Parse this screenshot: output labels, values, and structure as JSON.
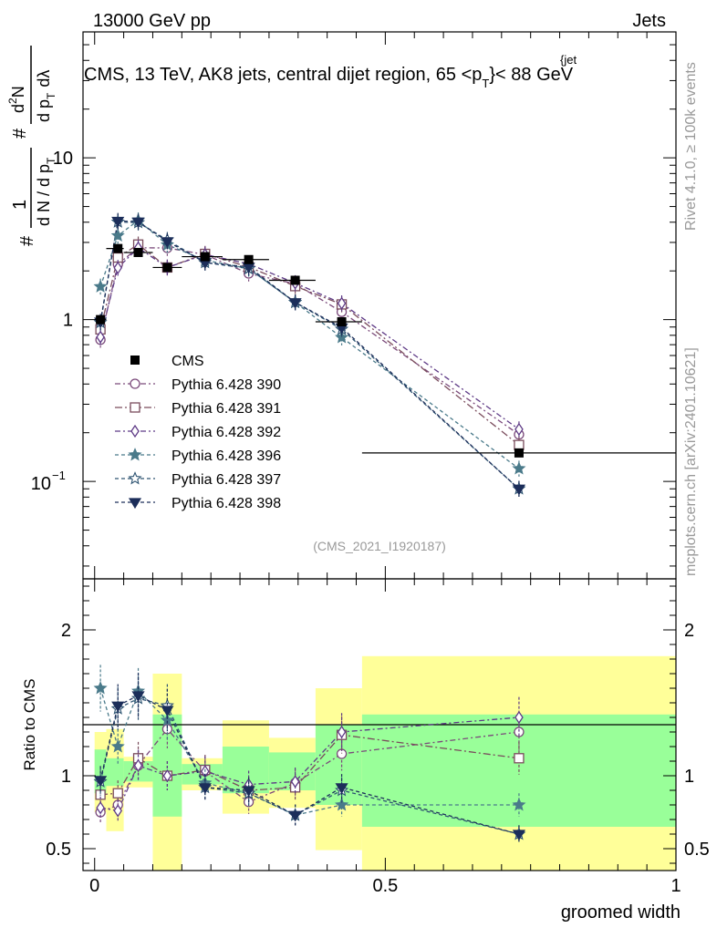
{
  "header": {
    "left": "13000 GeV pp",
    "right": "Jets",
    "plot_title": "CMS, 13 TeV, AK8 jets, central dijet region, 65 <p",
    "plot_title_sup": "{jet",
    "plot_title_sub": "T",
    "plot_title_end": "}< 88 GeV",
    "analysis_ref": "(CMS_2021_I1920187)",
    "side_rivet": "Rivet 4.1.0, ≥ 100k events",
    "side_mcplots": "mcplots.cern.ch [arXiv:2401.10621]"
  },
  "yaxis_main": {
    "num_hash": "#",
    "num_one": "1",
    "den": "d N / d p",
    "den_sub": "T",
    "num2_hash": "#",
    "num2": "d",
    "num2_sup": "2",
    "num2_N": "N",
    "den2": "d p",
    "den2_sub": "T",
    "den2_end": "d",
    "lambda": "λ"
  },
  "chart_data": {
    "type": "scatter",
    "title": "CMS, 13 TeV, AK8 jets, central dijet region, 65 < pT jet < 88 GeV",
    "xlabel": "groomed width",
    "ylabel": "1/(dN/dpT) d2N/(dpT dλ)",
    "ratio_ylabel": "Ratio to CMS",
    "xlim": [
      -0.02,
      1.0
    ],
    "ylim_main": [
      0.025,
      60
    ],
    "yscale_main": "log",
    "ylim_ratio": [
      0.35,
      2.35
    ],
    "x_ticks": [
      "0",
      "0.5",
      "1"
    ],
    "y_ticks_main": [
      "1",
      "10"
    ],
    "y_ticks_main_exp": {
      "base": "10",
      "exp": "−1"
    },
    "y_ticks_ratio": [
      "0.5",
      "1",
      "2"
    ],
    "x_centers": [
      0.01,
      0.04,
      0.075,
      0.125,
      0.19,
      0.265,
      0.345,
      0.425,
      0.73
    ],
    "x_bins": [
      [
        0.0,
        0.02
      ],
      [
        0.02,
        0.05
      ],
      [
        0.05,
        0.1
      ],
      [
        0.1,
        0.15
      ],
      [
        0.15,
        0.22
      ],
      [
        0.22,
        0.3
      ],
      [
        0.3,
        0.38
      ],
      [
        0.38,
        0.46
      ],
      [
        0.46,
        1.0
      ]
    ],
    "data": {
      "name": "CMS",
      "values": [
        1.0,
        2.75,
        2.6,
        2.1,
        2.45,
        2.35,
        1.75,
        0.97,
        0.15
      ]
    },
    "ratio_band_green": [
      [
        0.88,
        1.18
      ],
      [
        0.93,
        1.12
      ],
      [
        0.96,
        1.1
      ],
      [
        0.72,
        1.42
      ],
      [
        0.94,
        1.08
      ],
      [
        0.88,
        1.2
      ],
      [
        0.9,
        1.16
      ],
      [
        0.8,
        1.35
      ],
      [
        0.65,
        1.42
      ]
    ],
    "ratio_band_yellow": [
      [
        0.75,
        1.3
      ],
      [
        0.62,
        1.32
      ],
      [
        0.92,
        1.13
      ],
      [
        0.3,
        1.7
      ],
      [
        0.9,
        1.12
      ],
      [
        0.74,
        1.38
      ],
      [
        0.78,
        1.26
      ],
      [
        0.49,
        1.6
      ],
      [
        0.3,
        1.82
      ]
    ],
    "series": [
      {
        "name": "Pythia 6.428 390",
        "color": "#7b4a7b",
        "marker": "circle-open",
        "dash": "6,3,2,3",
        "ratio": [
          0.75,
          0.8,
          1.07,
          1.32,
          1.03,
          0.82,
          0.95,
          1.15,
          1.3
        ]
      },
      {
        "name": "Pythia 6.428 391",
        "color": "#7a4c5c",
        "marker": "square-open",
        "dash": "8,3,2,3",
        "ratio": [
          0.87,
          0.88,
          1.12,
          1.0,
          1.04,
          0.9,
          0.92,
          1.28,
          1.12
        ]
      },
      {
        "name": "Pythia 6.428 392",
        "color": "#5e3a86",
        "marker": "diamond-open",
        "dash": "6,3,2,3",
        "ratio": [
          0.78,
          0.76,
          1.07,
          1.0,
          1.03,
          0.94,
          0.96,
          1.3,
          1.4
        ]
      },
      {
        "name": "Pythia 6.428 396",
        "color": "#4a7a8a",
        "marker": "star-filled",
        "dash": "4,3",
        "ratio": [
          1.6,
          1.2,
          1.58,
          1.38,
          0.95,
          0.88,
          0.73,
          0.8,
          0.8
        ]
      },
      {
        "name": "Pythia 6.428 397",
        "color": "#2e5472",
        "marker": "star-open",
        "dash": "4,3",
        "ratio": [
          0.96,
          1.46,
          1.53,
          1.48,
          0.92,
          0.88,
          0.73,
          0.9,
          0.6
        ]
      },
      {
        "name": "Pythia 6.428 398",
        "color": "#1c2e5a",
        "marker": "triangle-down-filled",
        "dash": "4,3",
        "ratio": [
          0.97,
          1.48,
          1.55,
          1.45,
          0.92,
          0.9,
          0.73,
          0.92,
          0.6
        ]
      }
    ]
  }
}
